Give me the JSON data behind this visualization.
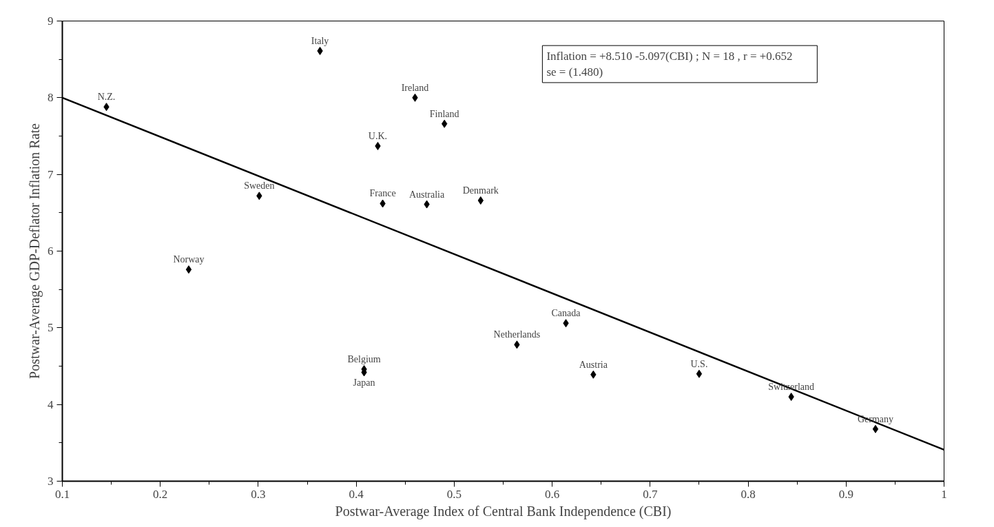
{
  "chart_data": {
    "type": "scatter",
    "xlabel": "Postwar-Average Index of Central Bank Independence (CBI)",
    "ylabel": "Postwar-Average GDP-Deflator Inflation Rate",
    "series": [
      {
        "color": "#000000",
        "marker": "diamond",
        "x": [
          0.363,
          0.145,
          0.46,
          0.49,
          0.422,
          0.301,
          0.427,
          0.472,
          0.527,
          0.229,
          0.408,
          0.408,
          0.564,
          0.614,
          0.642,
          0.75,
          0.844,
          0.93
        ],
        "values": [
          8.61,
          7.88,
          8.0,
          7.66,
          7.37,
          6.72,
          6.62,
          6.61,
          6.66,
          5.76,
          4.46,
          4.42,
          4.78,
          5.06,
          4.39,
          4.4,
          4.1,
          3.68
        ]
      },
      {
        "type": "line",
        "color": "#000000",
        "line_style": "solid",
        "x": [
          0.1,
          1.0
        ],
        "values": [
          8.0,
          3.41
        ]
      }
    ],
    "annotations": [
      {
        "text": "Italy",
        "x": 0.363,
        "y": 8.61
      },
      {
        "text": "N.Z.",
        "x": 0.145,
        "y": 7.88
      },
      {
        "text": "Ireland",
        "x": 0.46,
        "y": 8.0
      },
      {
        "text": "Finland",
        "x": 0.49,
        "y": 7.66
      },
      {
        "text": "U.K.",
        "x": 0.422,
        "y": 7.37
      },
      {
        "text": "Sweden",
        "x": 0.301,
        "y": 6.72
      },
      {
        "text": "France",
        "x": 0.427,
        "y": 6.62
      },
      {
        "text": "Australia",
        "x": 0.472,
        "y": 6.61
      },
      {
        "text": "Denmark",
        "x": 0.527,
        "y": 6.66
      },
      {
        "text": "Norway",
        "x": 0.229,
        "y": 5.76
      },
      {
        "text": "Belgium",
        "x": 0.408,
        "y": 4.46
      },
      {
        "text": "Japan",
        "x": 0.408,
        "y": 4.42
      },
      {
        "text": "Netherlands",
        "x": 0.564,
        "y": 4.78
      },
      {
        "text": "Canada",
        "x": 0.614,
        "y": 5.06
      },
      {
        "text": "Austria",
        "x": 0.642,
        "y": 4.39
      },
      {
        "text": "U.S.",
        "x": 0.75,
        "y": 4.4
      },
      {
        "text": "Switzerland",
        "x": 0.844,
        "y": 4.1
      },
      {
        "text": "Germany",
        "x": 0.93,
        "y": 3.68
      },
      "Inflation = +8.510    -5.097(CBI)  ;  N = 18  ,  r = +0.652",
      "se    =    (1.480)"
    ],
    "xlim": [
      0.1,
      1.0
    ],
    "xticks": [
      0.1,
      0.2,
      0.3,
      0.4,
      0.5,
      0.6,
      0.7,
      0.8,
      0.9,
      {
        "value": 1.0,
        "label": "1"
      }
    ],
    "ylim": [
      3,
      9
    ],
    "yticks": [
      3,
      4,
      5,
      6,
      7,
      8,
      9
    ],
    "grid": false
  }
}
